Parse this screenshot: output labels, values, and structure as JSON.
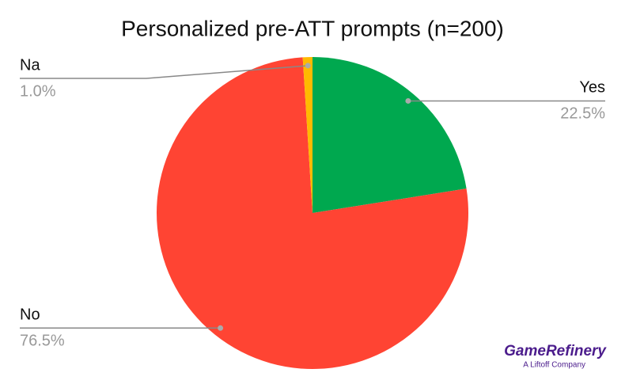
{
  "chart_data": {
    "type": "pie",
    "title": "Personalized pre-ATT prompts (n=200)",
    "categories": [
      "Yes",
      "No",
      "Na"
    ],
    "values": [
      22.5,
      76.5,
      1.0
    ],
    "value_labels": [
      "22.5%",
      "76.5%",
      "1.0%"
    ],
    "colors": [
      "#00a84f",
      "#ff4433",
      "#ffba00"
    ]
  },
  "logo": {
    "name": "GameRefinery",
    "tagline": "A Liftoff Company"
  }
}
